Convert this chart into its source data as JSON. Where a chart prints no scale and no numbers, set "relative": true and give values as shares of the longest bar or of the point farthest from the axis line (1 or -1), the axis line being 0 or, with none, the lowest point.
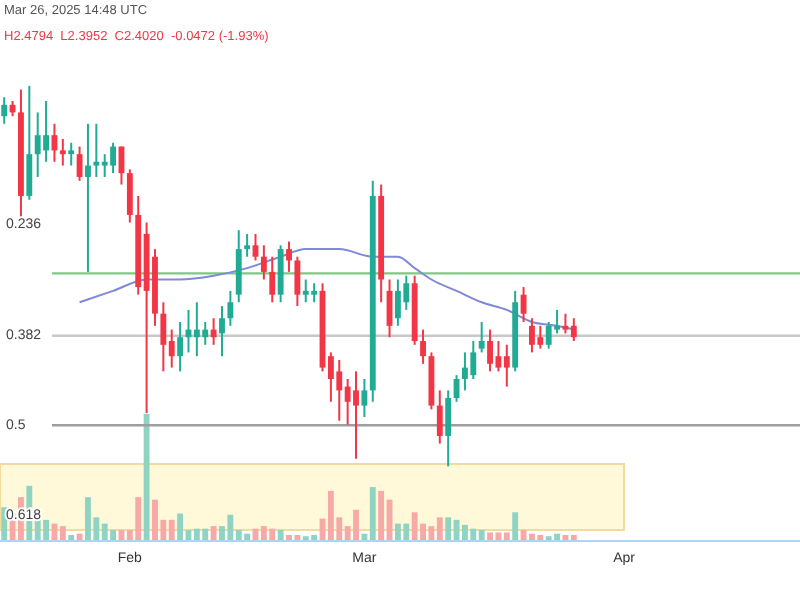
{
  "chart_data": [
    {
      "type": "candlestick",
      "subtitle": "Mar 26, 2025 14:48 UTC",
      "annotations": [
        "H2.4794  L2.3952  C2.4020  -0.0472 (-1.93%)"
      ],
      "x": [
        "2025-01-17",
        "2025-01-18",
        "2025-01-19",
        "2025-01-20",
        "2025-01-21",
        "2025-01-22",
        "2025-01-23",
        "2025-01-24",
        "2025-01-25",
        "2025-01-26",
        "2025-01-27",
        "2025-01-28",
        "2025-01-29",
        "2025-01-30",
        "2025-01-31",
        "2025-02-01",
        "2025-02-02",
        "2025-02-03",
        "2025-02-04",
        "2025-02-05",
        "2025-02-06",
        "2025-02-07",
        "2025-02-08",
        "2025-02-09",
        "2025-02-10",
        "2025-02-11",
        "2025-02-12",
        "2025-02-13",
        "2025-02-14",
        "2025-02-15",
        "2025-02-16",
        "2025-02-17",
        "2025-02-18",
        "2025-02-19",
        "2025-02-20",
        "2025-02-21",
        "2025-02-22",
        "2025-02-23",
        "2025-02-24",
        "2025-02-25",
        "2025-02-26",
        "2025-02-27",
        "2025-02-28",
        "2025-03-01",
        "2025-03-02",
        "2025-03-03",
        "2025-03-04",
        "2025-03-05",
        "2025-03-06",
        "2025-03-07",
        "2025-03-08",
        "2025-03-09",
        "2025-03-10",
        "2025-03-11",
        "2025-03-12",
        "2025-03-13",
        "2025-03-14",
        "2025-03-15",
        "2025-03-16",
        "2025-03-17",
        "2025-03-18",
        "2025-03-19",
        "2025-03-20",
        "2025-03-21",
        "2025-03-22",
        "2025-03-23",
        "2025-03-24",
        "2025-03-25",
        "2025-03-26"
      ],
      "xlim": [
        "2025-01-16T12:00",
        "2025-04-22T00:00"
      ],
      "tick_labels": "y",
      "ylim": [
        0.73,
        -0.06
      ],
      "yticks": [
        0.236,
        0.382,
        0.5,
        0.618
      ],
      "ref_lines": [
        {
          "axis": "y",
          "value": 0.3,
          "color": "#81c784"
        },
        {
          "axis": "y",
          "value": 0.382,
          "color": "#c8c8c8"
        },
        {
          "axis": "y",
          "value": 0.5,
          "color": "#9e9e9e"
        }
      ],
      "series": [
        {
          "type": "candlestick",
          "ohlc": [
            [
              0.093,
              0.103,
              0.068,
              0.078
            ],
            [
              0.078,
              0.093,
              0.073,
              0.088
            ],
            [
              0.088,
              0.233,
              0.058,
              0.198
            ],
            [
              0.198,
              0.203,
              0.053,
              0.143
            ],
            [
              0.143,
              0.173,
              0.088,
              0.118
            ],
            [
              0.138,
              0.153,
              0.073,
              0.118
            ],
            [
              0.118,
              0.153,
              0.103,
              0.138
            ],
            [
              0.138,
              0.158,
              0.123,
              0.143
            ],
            [
              0.143,
              0.158,
              0.128,
              0.138
            ],
            [
              0.143,
              0.178,
              0.133,
              0.173
            ],
            [
              0.173,
              0.298,
              0.103,
              0.158
            ],
            [
              0.158,
              0.173,
              0.103,
              0.153
            ],
            [
              0.158,
              0.173,
              0.143,
              0.153
            ],
            [
              0.158,
              0.168,
              0.128,
              0.133
            ],
            [
              0.133,
              0.183,
              0.133,
              0.168
            ],
            [
              0.168,
              0.233,
              0.163,
              0.223
            ],
            [
              0.223,
              0.328,
              0.198,
              0.318
            ],
            [
              0.248,
              0.484,
              0.233,
              0.323
            ],
            [
              0.278,
              0.369,
              0.268,
              0.353
            ],
            [
              0.353,
              0.429,
              0.338,
              0.394
            ],
            [
              0.389,
              0.424,
              0.374,
              0.409
            ],
            [
              0.409,
              0.429,
              0.364,
              0.384
            ],
            [
              0.384,
              0.404,
              0.348,
              0.374
            ],
            [
              0.384,
              0.409,
              0.338,
              0.374
            ],
            [
              0.384,
              0.394,
              0.364,
              0.374
            ],
            [
              0.374,
              0.394,
              0.359,
              0.384
            ],
            [
              0.379,
              0.409,
              0.343,
              0.359
            ],
            [
              0.359,
              0.369,
              0.323,
              0.338
            ],
            [
              0.328,
              0.338,
              0.243,
              0.268
            ],
            [
              0.268,
              0.278,
              0.248,
              0.263
            ],
            [
              0.263,
              0.283,
              0.248,
              0.278
            ],
            [
              0.278,
              0.308,
              0.263,
              0.298
            ],
            [
              0.298,
              0.338,
              0.278,
              0.328
            ],
            [
              0.328,
              0.338,
              0.263,
              0.268
            ],
            [
              0.268,
              0.298,
              0.258,
              0.283
            ],
            [
              0.283,
              0.343,
              0.278,
              0.328
            ],
            [
              0.328,
              0.338,
              0.308,
              0.323
            ],
            [
              0.328,
              0.338,
              0.313,
              0.323
            ],
            [
              0.323,
              0.429,
              0.313,
              0.424
            ],
            [
              0.409,
              0.469,
              0.404,
              0.439
            ],
            [
              0.429,
              0.494,
              0.414,
              0.454
            ],
            [
              0.449,
              0.499,
              0.439,
              0.469
            ],
            [
              0.454,
              0.544,
              0.429,
              0.474
            ],
            [
              0.474,
              0.489,
              0.439,
              0.454
            ],
            [
              0.454,
              0.469,
              0.178,
              0.198
            ],
            [
              0.198,
              0.338,
              0.183,
              0.308
            ],
            [
              0.323,
              0.384,
              0.308,
              0.369
            ],
            [
              0.359,
              0.369,
              0.308,
              0.323
            ],
            [
              0.338,
              0.348,
              0.303,
              0.313
            ],
            [
              0.313,
              0.394,
              0.303,
              0.389
            ],
            [
              0.389,
              0.419,
              0.374,
              0.409
            ],
            [
              0.409,
              0.479,
              0.404,
              0.474
            ],
            [
              0.474,
              0.524,
              0.454,
              0.514
            ],
            [
              0.514,
              0.554,
              0.454,
              0.464
            ],
            [
              0.464,
              0.469,
              0.434,
              0.439
            ],
            [
              0.439,
              0.454,
              0.404,
              0.424
            ],
            [
              0.434,
              0.439,
              0.389,
              0.404
            ],
            [
              0.399,
              0.404,
              0.364,
              0.389
            ],
            [
              0.389,
              0.429,
              0.374,
              0.419
            ],
            [
              0.409,
              0.429,
              0.389,
              0.424
            ],
            [
              0.409,
              0.449,
              0.394,
              0.424
            ],
            [
              0.424,
              0.429,
              0.323,
              0.338
            ],
            [
              0.328,
              0.364,
              0.318,
              0.353
            ],
            [
              0.369,
              0.404,
              0.359,
              0.394
            ],
            [
              0.384,
              0.399,
              0.369,
              0.394
            ],
            [
              0.394,
              0.399,
              0.364,
              0.369
            ],
            [
              0.374,
              0.379,
              0.348,
              0.369
            ],
            [
              0.369,
              0.379,
              0.353,
              0.374
            ],
            [
              0.369,
              0.389,
              0.359,
              0.384
            ]
          ],
          "colors": [
            "#22ab94",
            "#f23645",
            "#f23645",
            "#22ab94",
            "#22ab94",
            "#22ab94",
            "#f23645",
            "#f23645",
            "#22ab94",
            "#f23645",
            "#22ab94",
            "#22ab94",
            "#22ab94",
            "#22ab94",
            "#f23645",
            "#f23645",
            "#f23645",
            "#f23645",
            "#f23645",
            "#f23645",
            "#f23645",
            "#22ab94",
            "#22ab94",
            "#22ab94",
            "#22ab94",
            "#f23645",
            "#22ab94",
            "#22ab94",
            "#22ab94",
            "#22ab94",
            "#f23645",
            "#f23645",
            "#f23645",
            "#22ab94",
            "#f23645",
            "#f23645",
            "#22ab94",
            "#22ab94",
            "#f23645",
            "#f23645",
            "#f23645",
            "#f23645",
            "#f23645",
            "#22ab94",
            "#22ab94",
            "#f23645",
            "#f23645",
            "#22ab94",
            "#22ab94",
            "#f23645",
            "#f23645",
            "#f23645",
            "#f23645",
            "#22ab94",
            "#22ab94",
            "#22ab94",
            "#22ab94",
            "#22ab94",
            "#f23645",
            "#f23645",
            "#f23645",
            "#22ab94",
            "#f23645",
            "#f23645",
            "#f23645",
            "#22ab94",
            "#22ab94",
            "#f23645",
            "#f23645"
          ]
        },
        {
          "type": "line",
          "color": "#8088d8",
          "x": [
            "2025-01-26",
            "2025-01-30",
            "2025-02-03",
            "2025-02-07",
            "2025-02-11",
            "2025-02-15",
            "2025-02-19",
            "2025-02-22",
            "2025-02-26",
            "2025-03-02",
            "2025-03-05",
            "2025-03-07",
            "2025-03-09",
            "2025-03-12",
            "2025-03-15",
            "2025-03-18",
            "2025-03-21",
            "2025-03-24",
            "2025-03-26"
          ],
          "values": [
            0.338,
            0.323,
            0.308,
            0.308,
            0.303,
            0.293,
            0.278,
            0.268,
            0.268,
            0.278,
            0.278,
            0.293,
            0.308,
            0.323,
            0.338,
            0.348,
            0.364,
            0.369,
            0.374
          ]
        }
      ]
    },
    {
      "type": "bar",
      "relative": true,
      "tick_labels": "x",
      "x": [
        "2025-01-17",
        "2025-01-18",
        "2025-01-19",
        "2025-01-20",
        "2025-01-21",
        "2025-01-22",
        "2025-01-23",
        "2025-01-24",
        "2025-01-25",
        "2025-01-26",
        "2025-01-27",
        "2025-01-28",
        "2025-01-29",
        "2025-01-30",
        "2025-01-31",
        "2025-02-01",
        "2025-02-02",
        "2025-02-03",
        "2025-02-04",
        "2025-02-05",
        "2025-02-06",
        "2025-02-07",
        "2025-02-08",
        "2025-02-09",
        "2025-02-10",
        "2025-02-11",
        "2025-02-12",
        "2025-02-13",
        "2025-02-14",
        "2025-02-15",
        "2025-02-16",
        "2025-02-17",
        "2025-02-18",
        "2025-02-19",
        "2025-02-20",
        "2025-02-21",
        "2025-02-22",
        "2025-02-23",
        "2025-02-24",
        "2025-02-25",
        "2025-02-26",
        "2025-02-27",
        "2025-02-28",
        "2025-03-01",
        "2025-03-02",
        "2025-03-03",
        "2025-03-04",
        "2025-03-05",
        "2025-03-06",
        "2025-03-07",
        "2025-03-08",
        "2025-03-09",
        "2025-03-10",
        "2025-03-11",
        "2025-03-12",
        "2025-03-13",
        "2025-03-14",
        "2025-03-15",
        "2025-03-16",
        "2025-03-17",
        "2025-03-18",
        "2025-03-19",
        "2025-03-20",
        "2025-03-21",
        "2025-03-22",
        "2025-03-23",
        "2025-03-24",
        "2025-03-25",
        "2025-03-26"
      ],
      "xlim": [
        "2025-01-16T12:00",
        "2025-04-22T00:00"
      ],
      "xticks": [
        {
          "value": "2025-02-01",
          "label": "Feb"
        },
        {
          "value": "2025-03-01",
          "label": "Mar"
        },
        {
          "value": "2025-04-01",
          "label": "Apr"
        }
      ],
      "values": [
        0.26,
        0.21,
        0.34,
        0.43,
        0.18,
        0.16,
        0.13,
        0.11,
        0.04,
        0.05,
        0.34,
        0.18,
        0.13,
        0.08,
        0.08,
        0.08,
        0.34,
        1,
        0.32,
        0.16,
        0.16,
        0.21,
        0.08,
        0.09,
        0.09,
        0.11,
        0.11,
        0.2,
        0.08,
        0.05,
        0.09,
        0.11,
        0.09,
        0.08,
        0.04,
        0.04,
        0.03,
        0.04,
        0.17,
        0.39,
        0.18,
        0.11,
        0.24,
        0.05,
        0.42,
        0.39,
        0.32,
        0.13,
        0.13,
        0.22,
        0.13,
        0.11,
        0.18,
        0.18,
        0.16,
        0.12,
        0.09,
        0.08,
        0.06,
        0.06,
        0.06,
        0.22,
        0.08,
        0.05,
        0.04,
        0.03,
        0.05,
        0.04,
        0.04
      ],
      "colors": [
        "#8fd3c3",
        "#f7a9a7",
        "#f7a9a7",
        "#8fd3c3",
        "#8fd3c3",
        "#8fd3c3",
        "#f7a9a7",
        "#f7a9a7",
        "#8fd3c3",
        "#f7a9a7",
        "#8fd3c3",
        "#8fd3c3",
        "#8fd3c3",
        "#8fd3c3",
        "#f7a9a7",
        "#f7a9a7",
        "#f7a9a7",
        "#8fd3c3",
        "#f7a9a7",
        "#f7a9a7",
        "#f7a9a7",
        "#8fd3c3",
        "#8fd3c3",
        "#8fd3c3",
        "#8fd3c3",
        "#f7a9a7",
        "#8fd3c3",
        "#8fd3c3",
        "#8fd3c3",
        "#8fd3c3",
        "#f7a9a7",
        "#f7a9a7",
        "#f7a9a7",
        "#8fd3c3",
        "#f7a9a7",
        "#f7a9a7",
        "#8fd3c3",
        "#8fd3c3",
        "#f7a9a7",
        "#f7a9a7",
        "#f7a9a7",
        "#f7a9a7",
        "#f7a9a7",
        "#8fd3c3",
        "#8fd3c3",
        "#f7a9a7",
        "#f7a9a7",
        "#8fd3c3",
        "#8fd3c3",
        "#f7a9a7",
        "#f7a9a7",
        "#f7a9a7",
        "#f7a9a7",
        "#8fd3c3",
        "#8fd3c3",
        "#8fd3c3",
        "#8fd3c3",
        "#8fd3c3",
        "#f7a9a7",
        "#f7a9a7",
        "#f7a9a7",
        "#8fd3c3",
        "#f7a9a7",
        "#f7a9a7",
        "#f7a9a7",
        "#8fd3c3",
        "#8fd3c3",
        "#f7a9a7",
        "#f7a9a7"
      ]
    }
  ]
}
